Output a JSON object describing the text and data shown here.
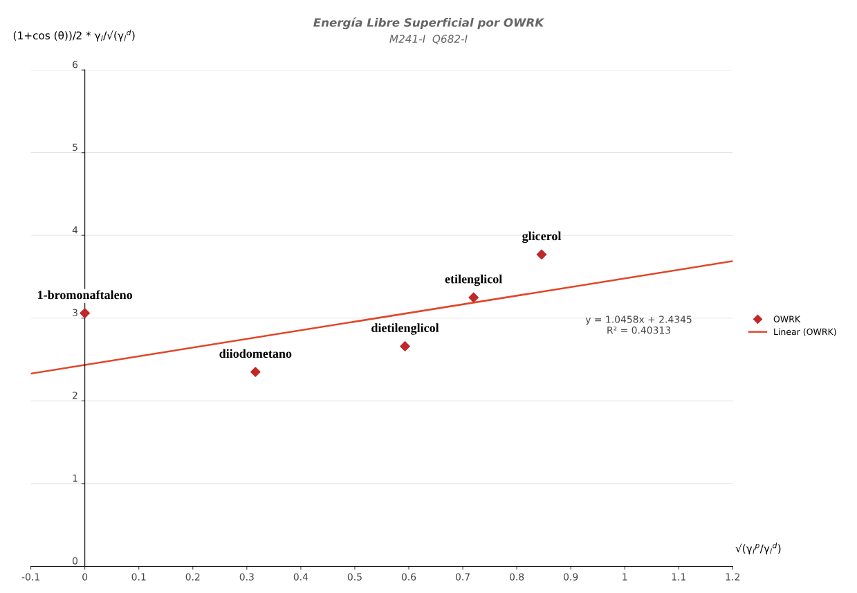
{
  "chart_data": {
    "type": "scatter",
    "title": "Energía Libre Superficial por OWRK",
    "subtitle": "M241-I  Q682-I",
    "xlabel": "√(γ$_{l}$$^{p}$/γ$_{l}$$^{d}$)",
    "ylabel": "(1+cos (θ))/2 * γ$_{l}$/√(γ$_{l}$$^{d}$)",
    "xlim": [
      -0.1,
      1.2
    ],
    "xticks": [
      -0.1,
      0,
      0.1,
      0.2,
      0.3,
      0.4,
      0.5,
      0.6,
      0.7,
      0.8,
      0.9,
      1,
      1.1,
      1.2
    ],
    "ylim": [
      0,
      6
    ],
    "yticks": [
      0,
      1,
      2,
      3,
      4,
      5,
      6
    ],
    "grid": "y",
    "legend": "right",
    "series": [
      {
        "name": "OWRK",
        "color": "#c0282a",
        "marker": "diamond",
        "x": [
          0,
          0.316,
          0.593,
          0.72,
          0.846
        ],
        "values": [
          3.06,
          2.35,
          2.66,
          3.25,
          3.77
        ]
      },
      {
        "name": "Linear (OWRK)",
        "type": "line",
        "color": "#e0462a",
        "marker": "none",
        "line_style": "solid",
        "x": [
          -0.1,
          1.2
        ],
        "values": [
          2.33,
          3.69
        ]
      }
    ],
    "annotations": [
      {
        "text": "1-bromonaftaleno",
        "x": 0,
        "y": 3.06
      },
      {
        "text": "diiodometano",
        "x": 0.316,
        "y": 2.35
      },
      {
        "text": "dietilenglicol",
        "x": 0.593,
        "y": 2.66
      },
      {
        "text": "etilenglicol",
        "x": 0.72,
        "y": 3.25
      },
      {
        "text": "glicerol",
        "x": 0.846,
        "y": 3.77
      },
      "y = 1.0458x + 2.4345\nR² = 0.40313"
    ]
  }
}
